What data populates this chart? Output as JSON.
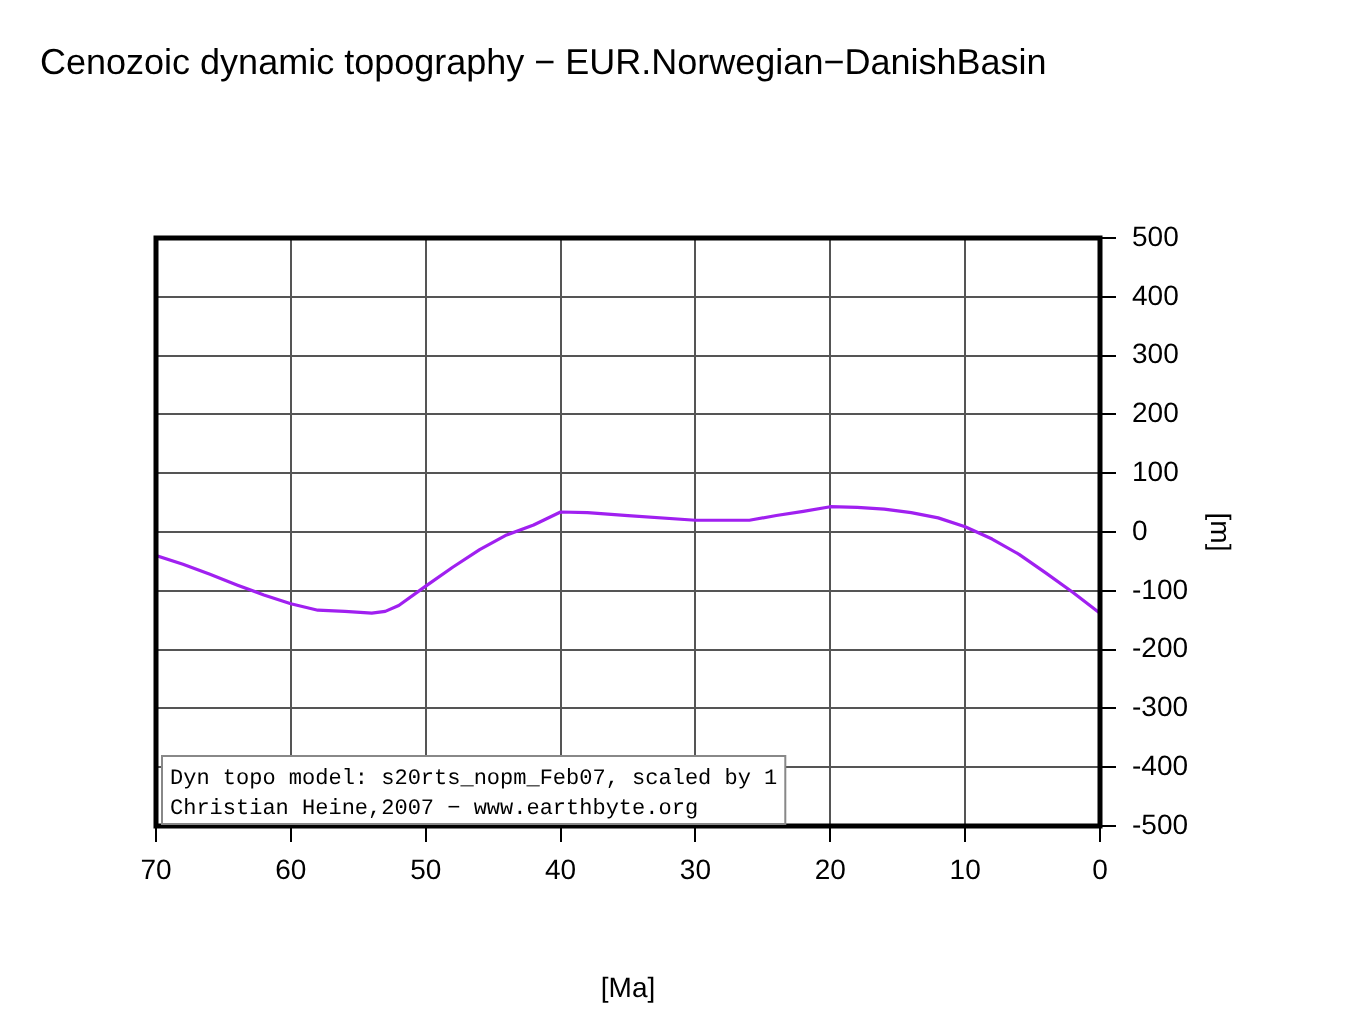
{
  "chart_data": {
    "type": "line",
    "title": "Cenozoic dynamic topography − EUR.Norwegian−DanishBasin",
    "xlabel": "[Ma]",
    "ylabel": "[m]",
    "x": [
      70,
      68,
      66,
      64,
      62,
      60,
      58,
      56,
      54,
      53,
      52,
      50,
      48,
      46,
      44,
      42,
      40,
      38,
      35,
      30,
      26,
      24,
      22,
      20,
      18,
      16,
      14,
      12,
      10,
      8,
      6,
      4,
      2,
      0
    ],
    "series": [
      {
        "color": "#a020f0",
        "values": [
          -40,
          -55,
          -72,
          -90,
          -107,
          -122,
          -133,
          -135,
          -138,
          -135,
          -125,
          -92,
          -60,
          -30,
          -5,
          12,
          34,
          33,
          28,
          20,
          20,
          28,
          35,
          43,
          42,
          39,
          33,
          24,
          9,
          -12,
          -38,
          -70,
          -103,
          -138
        ]
      }
    ],
    "xlim": [
      70,
      0
    ],
    "xticks": [
      70,
      60,
      50,
      40,
      30,
      20,
      10,
      0
    ],
    "ylim": [
      -500,
      500
    ],
    "yticks": [
      -500,
      -400,
      -300,
      -200,
      -100,
      0,
      100,
      200,
      300,
      400,
      500
    ],
    "grid": true,
    "legend": false,
    "marker": "none",
    "line_style": "solid",
    "annotations": [
      "Dyn topo model: s20rts_nopm_Feb07, scaled by 1",
      "Christian Heine,2007 − www.earthbyte.org"
    ]
  }
}
